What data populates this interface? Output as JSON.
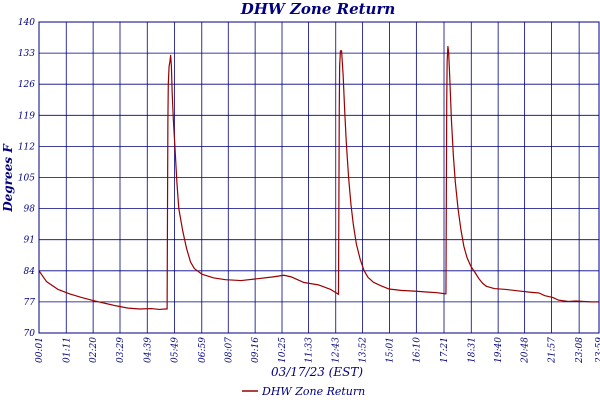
{
  "chart_data": {
    "type": "line",
    "title": "DHW Zone Return",
    "xlabel": "03/17/23 (EST)",
    "ylabel": "Degrees F",
    "ylim": [
      70,
      140
    ],
    "yticks": [
      70,
      77,
      84,
      91,
      98,
      105,
      112,
      119,
      126,
      133,
      140
    ],
    "xlim": [
      1,
      1439
    ],
    "xticks": [
      {
        "t": 1,
        "label": "00:01"
      },
      {
        "t": 71,
        "label": "01:11"
      },
      {
        "t": 140,
        "label": "02:20"
      },
      {
        "t": 209,
        "label": "03:29"
      },
      {
        "t": 279,
        "label": "04:39"
      },
      {
        "t": 349,
        "label": "05:49"
      },
      {
        "t": 419,
        "label": "06:59"
      },
      {
        "t": 487,
        "label": "08:07"
      },
      {
        "t": 556,
        "label": "09:16"
      },
      {
        "t": 625,
        "label": "10:25"
      },
      {
        "t": 693,
        "label": "11:33"
      },
      {
        "t": 763,
        "label": "12:43"
      },
      {
        "t": 832,
        "label": "13:52"
      },
      {
        "t": 901,
        "label": "15:01"
      },
      {
        "t": 970,
        "label": "16:10"
      },
      {
        "t": 1041,
        "label": "17:21"
      },
      {
        "t": 1111,
        "label": "18:31"
      },
      {
        "t": 1180,
        "label": "19:40"
      },
      {
        "t": 1248,
        "label": "20:48"
      },
      {
        "t": 1317,
        "label": "21:57"
      },
      {
        "t": 1388,
        "label": "23:08"
      },
      {
        "t": 1439,
        "label": "23:59"
      }
    ],
    "grid": true,
    "legend": "bottom",
    "color": "#990000",
    "series": [
      {
        "name": "DHW Zone Return",
        "points": [
          [
            1,
            84.0
          ],
          [
            20,
            81.6
          ],
          [
            50,
            79.8
          ],
          [
            80,
            78.8
          ],
          [
            110,
            78.0
          ],
          [
            140,
            77.3
          ],
          [
            170,
            76.7
          ],
          [
            200,
            76.1
          ],
          [
            230,
            75.6
          ],
          [
            260,
            75.4
          ],
          [
            290,
            75.5
          ],
          [
            310,
            75.3
          ],
          [
            325,
            75.4
          ],
          [
            330,
            75.4
          ],
          [
            331,
            98.0
          ],
          [
            332,
            118.0
          ],
          [
            333,
            126.0
          ],
          [
            335,
            130.0
          ],
          [
            337,
            131.0
          ],
          [
            339,
            132.5
          ],
          [
            341,
            130.0
          ],
          [
            343,
            124.0
          ],
          [
            346,
            118.0
          ],
          [
            350,
            112.0
          ],
          [
            355,
            104.0
          ],
          [
            360,
            98.0
          ],
          [
            370,
            93.0
          ],
          [
            380,
            89.0
          ],
          [
            390,
            86.0
          ],
          [
            400,
            84.5
          ],
          [
            420,
            83.2
          ],
          [
            450,
            82.4
          ],
          [
            480,
            82.0
          ],
          [
            520,
            81.8
          ],
          [
            560,
            82.2
          ],
          [
            600,
            82.6
          ],
          [
            630,
            83.0
          ],
          [
            650,
            82.6
          ],
          [
            680,
            81.4
          ],
          [
            720,
            80.8
          ],
          [
            750,
            79.8
          ],
          [
            765,
            79.0
          ],
          [
            770,
            78.7
          ],
          [
            771,
            98.0
          ],
          [
            772,
            120.0
          ],
          [
            773,
            130.0
          ],
          [
            775,
            133.5
          ],
          [
            778,
            133.5
          ],
          [
            782,
            128.0
          ],
          [
            786,
            120.0
          ],
          [
            790,
            113.0
          ],
          [
            796,
            105.0
          ],
          [
            802,
            99.0
          ],
          [
            808,
            94.5
          ],
          [
            816,
            90.0
          ],
          [
            826,
            86.5
          ],
          [
            836,
            84.0
          ],
          [
            846,
            82.5
          ],
          [
            860,
            81.4
          ],
          [
            880,
            80.6
          ],
          [
            900,
            79.9
          ],
          [
            930,
            79.6
          ],
          [
            970,
            79.4
          ],
          [
            1000,
            79.2
          ],
          [
            1020,
            79.1
          ],
          [
            1046,
            78.8
          ],
          [
            1047,
            100.0
          ],
          [
            1048,
            122.0
          ],
          [
            1049,
            131.0
          ],
          [
            1051,
            134.5
          ],
          [
            1053,
            133.0
          ],
          [
            1056,
            127.0
          ],
          [
            1060,
            118.0
          ],
          [
            1065,
            110.0
          ],
          [
            1070,
            104.0
          ],
          [
            1077,
            98.0
          ],
          [
            1084,
            93.5
          ],
          [
            1092,
            89.5
          ],
          [
            1100,
            87.0
          ],
          [
            1110,
            85.0
          ],
          [
            1120,
            83.7
          ],
          [
            1130,
            82.3
          ],
          [
            1140,
            81.2
          ],
          [
            1150,
            80.5
          ],
          [
            1170,
            80.0
          ],
          [
            1200,
            79.8
          ],
          [
            1230,
            79.5
          ],
          [
            1260,
            79.2
          ],
          [
            1285,
            79.0
          ],
          [
            1300,
            78.4
          ],
          [
            1320,
            78.0
          ],
          [
            1335,
            77.4
          ],
          [
            1360,
            77.1
          ],
          [
            1380,
            77.2
          ],
          [
            1400,
            77.1
          ],
          [
            1420,
            77.0
          ],
          [
            1439,
            77.0
          ]
        ]
      }
    ]
  }
}
